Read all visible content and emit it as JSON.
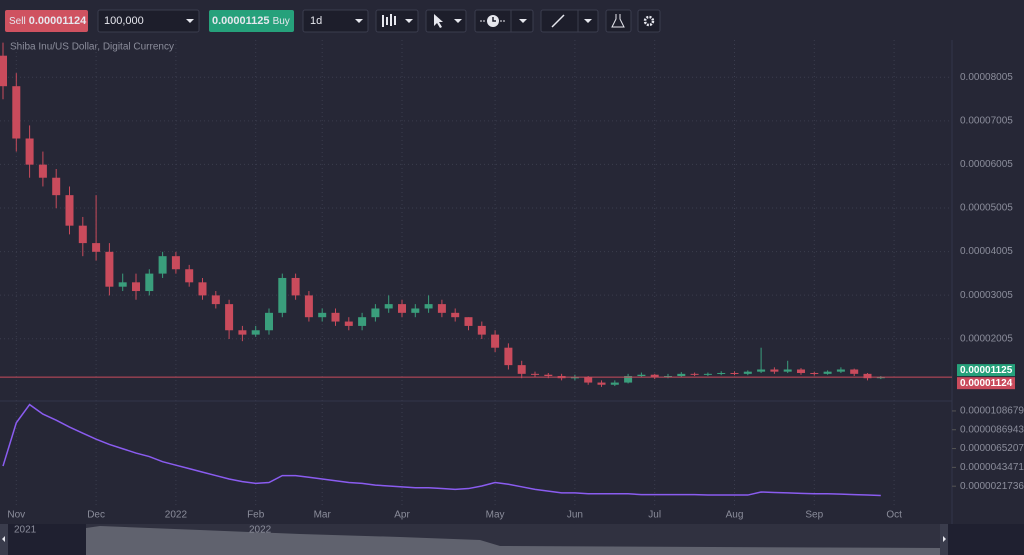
{
  "toolbar": {
    "sell_label": "Sell",
    "sell_price": "0.00001124",
    "amount": "100,000",
    "buy_price": "0.00001125",
    "buy_label": "Buy",
    "interval": "1d"
  },
  "chart_data": [
    {
      "type": "candlestick",
      "subtitle": "Shiba Inu/US Dollar, Digital Currency",
      "categories": [
        null,
        "Nov",
        null,
        null,
        null,
        null,
        null,
        "Dec",
        null,
        null,
        null,
        null,
        null,
        "2022",
        null,
        null,
        null,
        null,
        null,
        "Feb",
        null,
        null,
        null,
        null,
        "Mar",
        null,
        null,
        null,
        null,
        null,
        "Apr",
        null,
        null,
        null,
        null,
        null,
        null,
        "May",
        null,
        null,
        null,
        null,
        null,
        "Jun",
        null,
        null,
        null,
        null,
        null,
        "Jul",
        null,
        null,
        null,
        null,
        null,
        "Aug",
        null,
        null,
        null,
        null,
        null,
        "Sep",
        null,
        null,
        null,
        null,
        null,
        "Oct"
      ],
      "open": [
        8.5e-05,
        7.8e-05,
        6.6e-05,
        6e-05,
        5.7e-05,
        5.3e-05,
        4.6e-05,
        4.2e-05,
        4e-05,
        3.2e-05,
        3.3e-05,
        3.1e-05,
        3.5e-05,
        3.9e-05,
        3.6e-05,
        3.3e-05,
        3e-05,
        2.8e-05,
        2.2e-05,
        2.1e-05,
        2.2e-05,
        2.6e-05,
        3.4e-05,
        3e-05,
        2.5e-05,
        2.6e-05,
        2.4e-05,
        2.3e-05,
        2.5e-05,
        2.7e-05,
        2.8e-05,
        2.6e-05,
        2.7e-05,
        2.8e-05,
        2.6e-05,
        2.5e-05,
        2.3e-05,
        2.1e-05,
        1.8e-05,
        1.4e-05,
        1.2e-05,
        1.18e-05,
        1.15e-05,
        1.1e-05,
        1.12e-05,
        1e-05,
        9.5e-06,
        1e-05,
        1.15e-05,
        1.18e-05,
        1.12e-05,
        1.15e-05,
        1.2e-05,
        1.18e-05,
        1.2e-05,
        1.22e-05,
        1.2e-05,
        1.25e-05,
        1.3e-05,
        1.25e-05,
        1.3e-05,
        1.22e-05,
        1.2e-05,
        1.25e-05,
        1.3e-05,
        1.2e-05,
        1.1e-05,
        null
      ],
      "high": [
        8.8e-05,
        8.1e-05,
        6.9e-05,
        6.3e-05,
        5.9e-05,
        5.5e-05,
        4.8e-05,
        5.3e-05,
        4.2e-05,
        3.5e-05,
        3.5e-05,
        3.6e-05,
        4e-05,
        4e-05,
        3.7e-05,
        3.4e-05,
        3.1e-05,
        2.9e-05,
        2.3e-05,
        2.3e-05,
        2.7e-05,
        3.5e-05,
        3.5e-05,
        3.1e-05,
        2.7e-05,
        2.7e-05,
        2.5e-05,
        2.6e-05,
        2.8e-05,
        3e-05,
        2.9e-05,
        2.8e-05,
        3e-05,
        2.9e-05,
        2.7e-05,
        2.5e-05,
        2.4e-05,
        2.2e-05,
        1.9e-05,
        1.5e-05,
        1.25e-05,
        1.22e-05,
        1.2e-05,
        1.18e-05,
        1.15e-05,
        1.05e-05,
        1.05e-05,
        1.2e-05,
        1.23e-05,
        1.2e-05,
        1.2e-05,
        1.24e-05,
        1.23e-05,
        1.23e-05,
        1.26e-05,
        1.26e-05,
        1.28e-05,
        1.8e-05,
        1.35e-05,
        1.5e-05,
        1.33e-05,
        1.25e-05,
        1.28e-05,
        1.35e-05,
        1.32e-05,
        1.22e-05,
        1.15e-05,
        null
      ],
      "low": [
        7.5e-05,
        6.3e-05,
        5.7e-05,
        5.5e-05,
        5e-05,
        4.4e-05,
        3.9e-05,
        3.8e-05,
        3e-05,
        3.1e-05,
        2.9e-05,
        3e-05,
        3.4e-05,
        3.5e-05,
        3.2e-05,
        2.9e-05,
        2.7e-05,
        2e-05,
        1.95e-05,
        2.05e-05,
        2.1e-05,
        2.5e-05,
        2.9e-05,
        2.4e-05,
        2.4e-05,
        2.3e-05,
        2.2e-05,
        2.2e-05,
        2.4e-05,
        2.6e-05,
        2.5e-05,
        2.5e-05,
        2.6e-05,
        2.5e-05,
        2.4e-05,
        2.2e-05,
        2e-05,
        1.7e-05,
        1.3e-05,
        1.1e-05,
        1.12e-05,
        1.1e-05,
        1.05e-05,
        1.05e-05,
        9.5e-06,
        9e-06,
        9.2e-06,
        9.8e-06,
        1.12e-05,
        1.08e-05,
        1.1e-05,
        1.12e-05,
        1.15e-05,
        1.15e-05,
        1.17e-05,
        1.17e-05,
        1.17e-05,
        1.22e-05,
        1.2e-05,
        1.22e-05,
        1.18e-05,
        1.16e-05,
        1.18e-05,
        1.22e-05,
        1.15e-05,
        1.05e-05,
        1.08e-05,
        null
      ],
      "close": [
        7.8e-05,
        6.6e-05,
        6e-05,
        5.7e-05,
        5.3e-05,
        4.6e-05,
        4.2e-05,
        4e-05,
        3.2e-05,
        3.3e-05,
        3.1e-05,
        3.5e-05,
        3.9e-05,
        3.6e-05,
        3.3e-05,
        3e-05,
        2.8e-05,
        2.2e-05,
        2.1e-05,
        2.2e-05,
        2.6e-05,
        3.4e-05,
        3e-05,
        2.5e-05,
        2.6e-05,
        2.4e-05,
        2.3e-05,
        2.5e-05,
        2.7e-05,
        2.8e-05,
        2.6e-05,
        2.7e-05,
        2.8e-05,
        2.6e-05,
        2.5e-05,
        2.3e-05,
        2.1e-05,
        1.8e-05,
        1.4e-05,
        1.2e-05,
        1.18e-05,
        1.15e-05,
        1.1e-05,
        1.12e-05,
        1e-05,
        9.5e-06,
        1e-05,
        1.15e-05,
        1.18e-05,
        1.12e-05,
        1.15e-05,
        1.2e-05,
        1.18e-05,
        1.2e-05,
        1.22e-05,
        1.2e-05,
        1.25e-05,
        1.3e-05,
        1.25e-05,
        1.3e-05,
        1.22e-05,
        1.2e-05,
        1.25e-05,
        1.3e-05,
        1.2e-05,
        1.1e-05,
        1.124e-05,
        null
      ],
      "up_color": "#3a9e7c",
      "down_color": "#c94b5c",
      "ylim": [
        6e-06,
        8.86e-05
      ],
      "yticks": [
        2.005e-05,
        3.005e-05,
        4.005e-05,
        5.005e-05,
        6.005e-05,
        7.005e-05,
        8.005e-05
      ],
      "grid": true,
      "ask": 1.125e-05,
      "ask_color": "#26a17b",
      "bid": 1.124e-05,
      "bid_color": "#c94b5c"
    },
    {
      "type": "line",
      "color": "#8a5cf0",
      "values": [
        4.5e-06,
        9.5e-06,
        1.16e-05,
        1.05e-05,
        9.8e-06,
        9e-06,
        8.3e-06,
        7.6e-06,
        7e-06,
        6.5e-06,
        6e-06,
        5.6e-06,
        5e-06,
        4.6e-06,
        4.2e-06,
        3.8e-06,
        3.4e-06,
        3e-06,
        2.7e-06,
        2.5e-06,
        2.6e-06,
        3.4e-06,
        3.4e-06,
        3.2e-06,
        3e-06,
        2.8e-06,
        2.6e-06,
        2.5e-06,
        2.3e-06,
        2.2e-06,
        2.1e-06,
        2e-06,
        2e-06,
        1.9e-06,
        1.8e-06,
        1.9e-06,
        2.2e-06,
        2.6e-06,
        2.4e-06,
        2.1e-06,
        1.8e-06,
        1.6e-06,
        1.4e-06,
        1.4e-06,
        1.3e-06,
        1.3e-06,
        1.3e-06,
        1.3e-06,
        1.2e-06,
        1.2e-06,
        1.2e-06,
        1.2e-06,
        1.2e-06,
        1.15e-06,
        1.15e-06,
        1.15e-06,
        1.15e-06,
        1.5e-06,
        1.45e-06,
        1.4e-06,
        1.35e-06,
        1.3e-06,
        1.3e-06,
        1.25e-06,
        1.2e-06,
        1.15e-06,
        1.1e-06,
        null
      ],
      "ylim": [
        0,
        1.19e-05
      ],
      "yticks": [
        2.1736e-06,
        4.3471e-06,
        6.5207e-06,
        8.6943e-06,
        1.08679e-05
      ]
    }
  ],
  "navigator": {
    "labels": [
      "2021",
      "2022"
    ]
  }
}
